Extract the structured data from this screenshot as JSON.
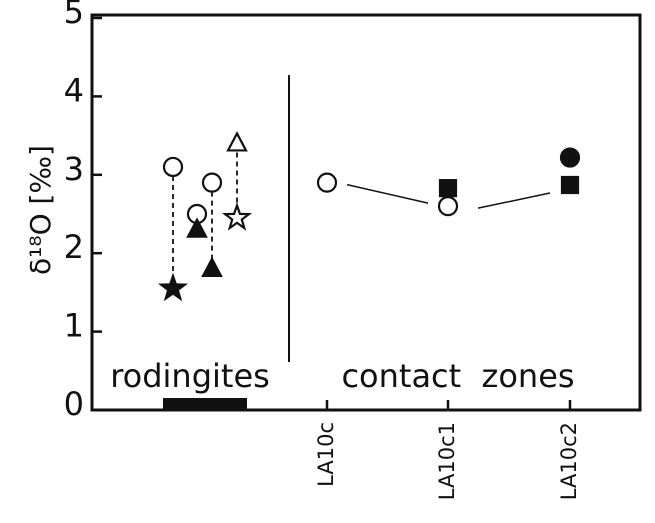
{
  "chart_data": {
    "type": "scatter",
    "ylabel": "δ¹⁸O [‰]",
    "ylim": [
      0,
      5
    ],
    "yticks": [
      0,
      1,
      2,
      3,
      4,
      5
    ],
    "groups": [
      {
        "label": "rodingites",
        "samples": [
          [
            {
              "marker": "circle",
              "filled": false,
              "value": 3.1
            },
            {
              "marker": "star",
              "filled": true,
              "value": 1.55
            }
          ],
          [
            {
              "marker": "circle",
              "filled": false,
              "value": 2.5
            },
            {
              "marker": "triangle",
              "filled": true,
              "value": 2.3
            }
          ],
          [
            {
              "marker": "circle",
              "filled": false,
              "value": 2.9
            },
            {
              "marker": "triangle",
              "filled": true,
              "value": 1.8
            }
          ],
          [
            {
              "marker": "triangle",
              "filled": false,
              "value": 3.4
            },
            {
              "marker": "star",
              "filled": false,
              "value": 2.45
            }
          ]
        ]
      },
      {
        "label": "contact  zones",
        "categories": [
          "LA10c",
          "LA10c1",
          "LA10c2"
        ],
        "series": [
          {
            "marker": "circle",
            "filled": false,
            "values": [
              2.9,
              2.6,
              null
            ]
          },
          {
            "marker": "square",
            "filled": true,
            "values": [
              null,
              2.83,
              2.87
            ]
          },
          {
            "marker": "circle",
            "filled": true,
            "values": [
              null,
              null,
              3.22
            ]
          }
        ]
      }
    ]
  }
}
